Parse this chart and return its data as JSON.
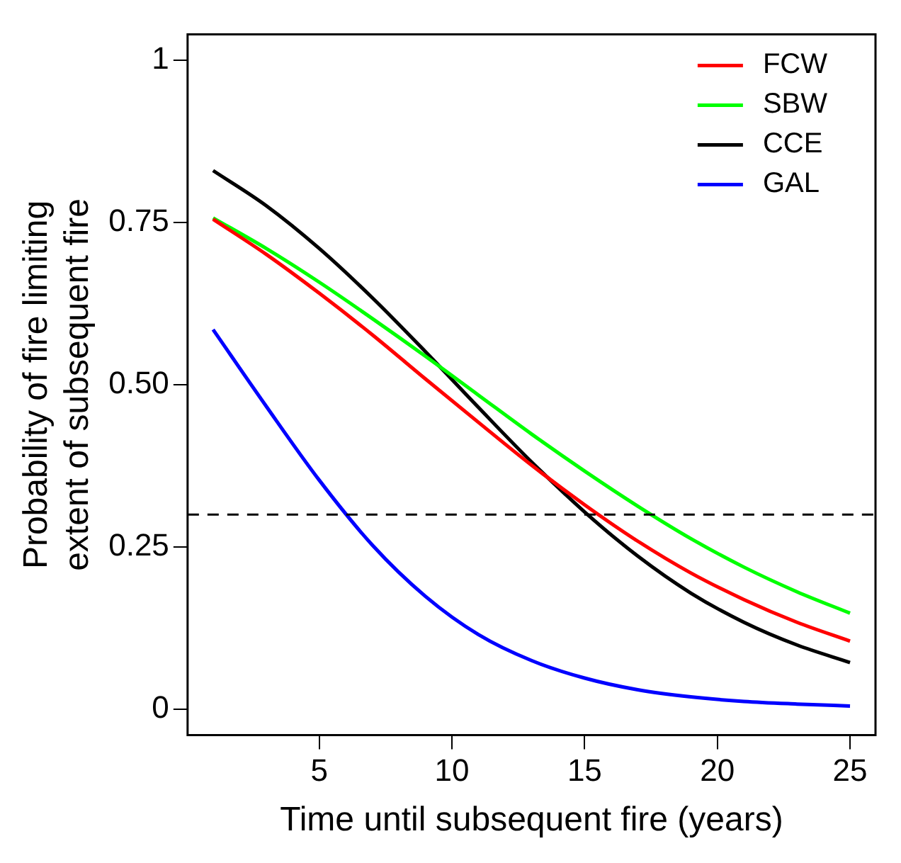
{
  "chart_data": {
    "type": "line",
    "xlabel": "Time until subsequent fire (years)",
    "ylabel": "Probability of fire limiting\nextent of subsequent fire",
    "x": [
      1,
      3,
      5,
      7,
      9,
      11,
      13,
      15,
      17,
      19,
      21,
      23,
      25
    ],
    "series": [
      {
        "name": "FCW",
        "color": "#ff0000",
        "values": [
          0.755,
          0.701,
          0.641,
          0.577,
          0.509,
          0.442,
          0.376,
          0.315,
          0.259,
          0.21,
          0.169,
          0.134,
          0.105
        ]
      },
      {
        "name": "SBW",
        "color": "#00ff00",
        "values": [
          0.757,
          0.71,
          0.658,
          0.602,
          0.544,
          0.484,
          0.424,
          0.367,
          0.313,
          0.263,
          0.219,
          0.181,
          0.148
        ]
      },
      {
        "name": "CCE",
        "color": "#000000",
        "values": [
          0.83,
          0.776,
          0.71,
          0.634,
          0.551,
          0.465,
          0.381,
          0.304,
          0.236,
          0.179,
          0.134,
          0.099,
          0.072
        ]
      },
      {
        "name": "GAL",
        "color": "#0000ff",
        "values": [
          0.585,
          0.467,
          0.353,
          0.253,
          0.174,
          0.115,
          0.075,
          0.048,
          0.03,
          0.019,
          0.012,
          0.008,
          0.005
        ]
      }
    ],
    "xlim": [
      0.04,
      25.96
    ],
    "xticks": [
      5,
      10,
      15,
      20,
      25
    ],
    "ylim": [
      -0.04,
      1.04
    ],
    "yticks": [
      0,
      0.25,
      {
        "value": 0.5,
        "label": "0.50"
      },
      0.75,
      1
    ],
    "ref_lines": [
      {
        "axis": "y",
        "value": 0.3,
        "color": "#000000",
        "line_style": "dashed"
      }
    ],
    "grid": false,
    "legend": "top right",
    "marker": "none",
    "line_style": "solid"
  }
}
